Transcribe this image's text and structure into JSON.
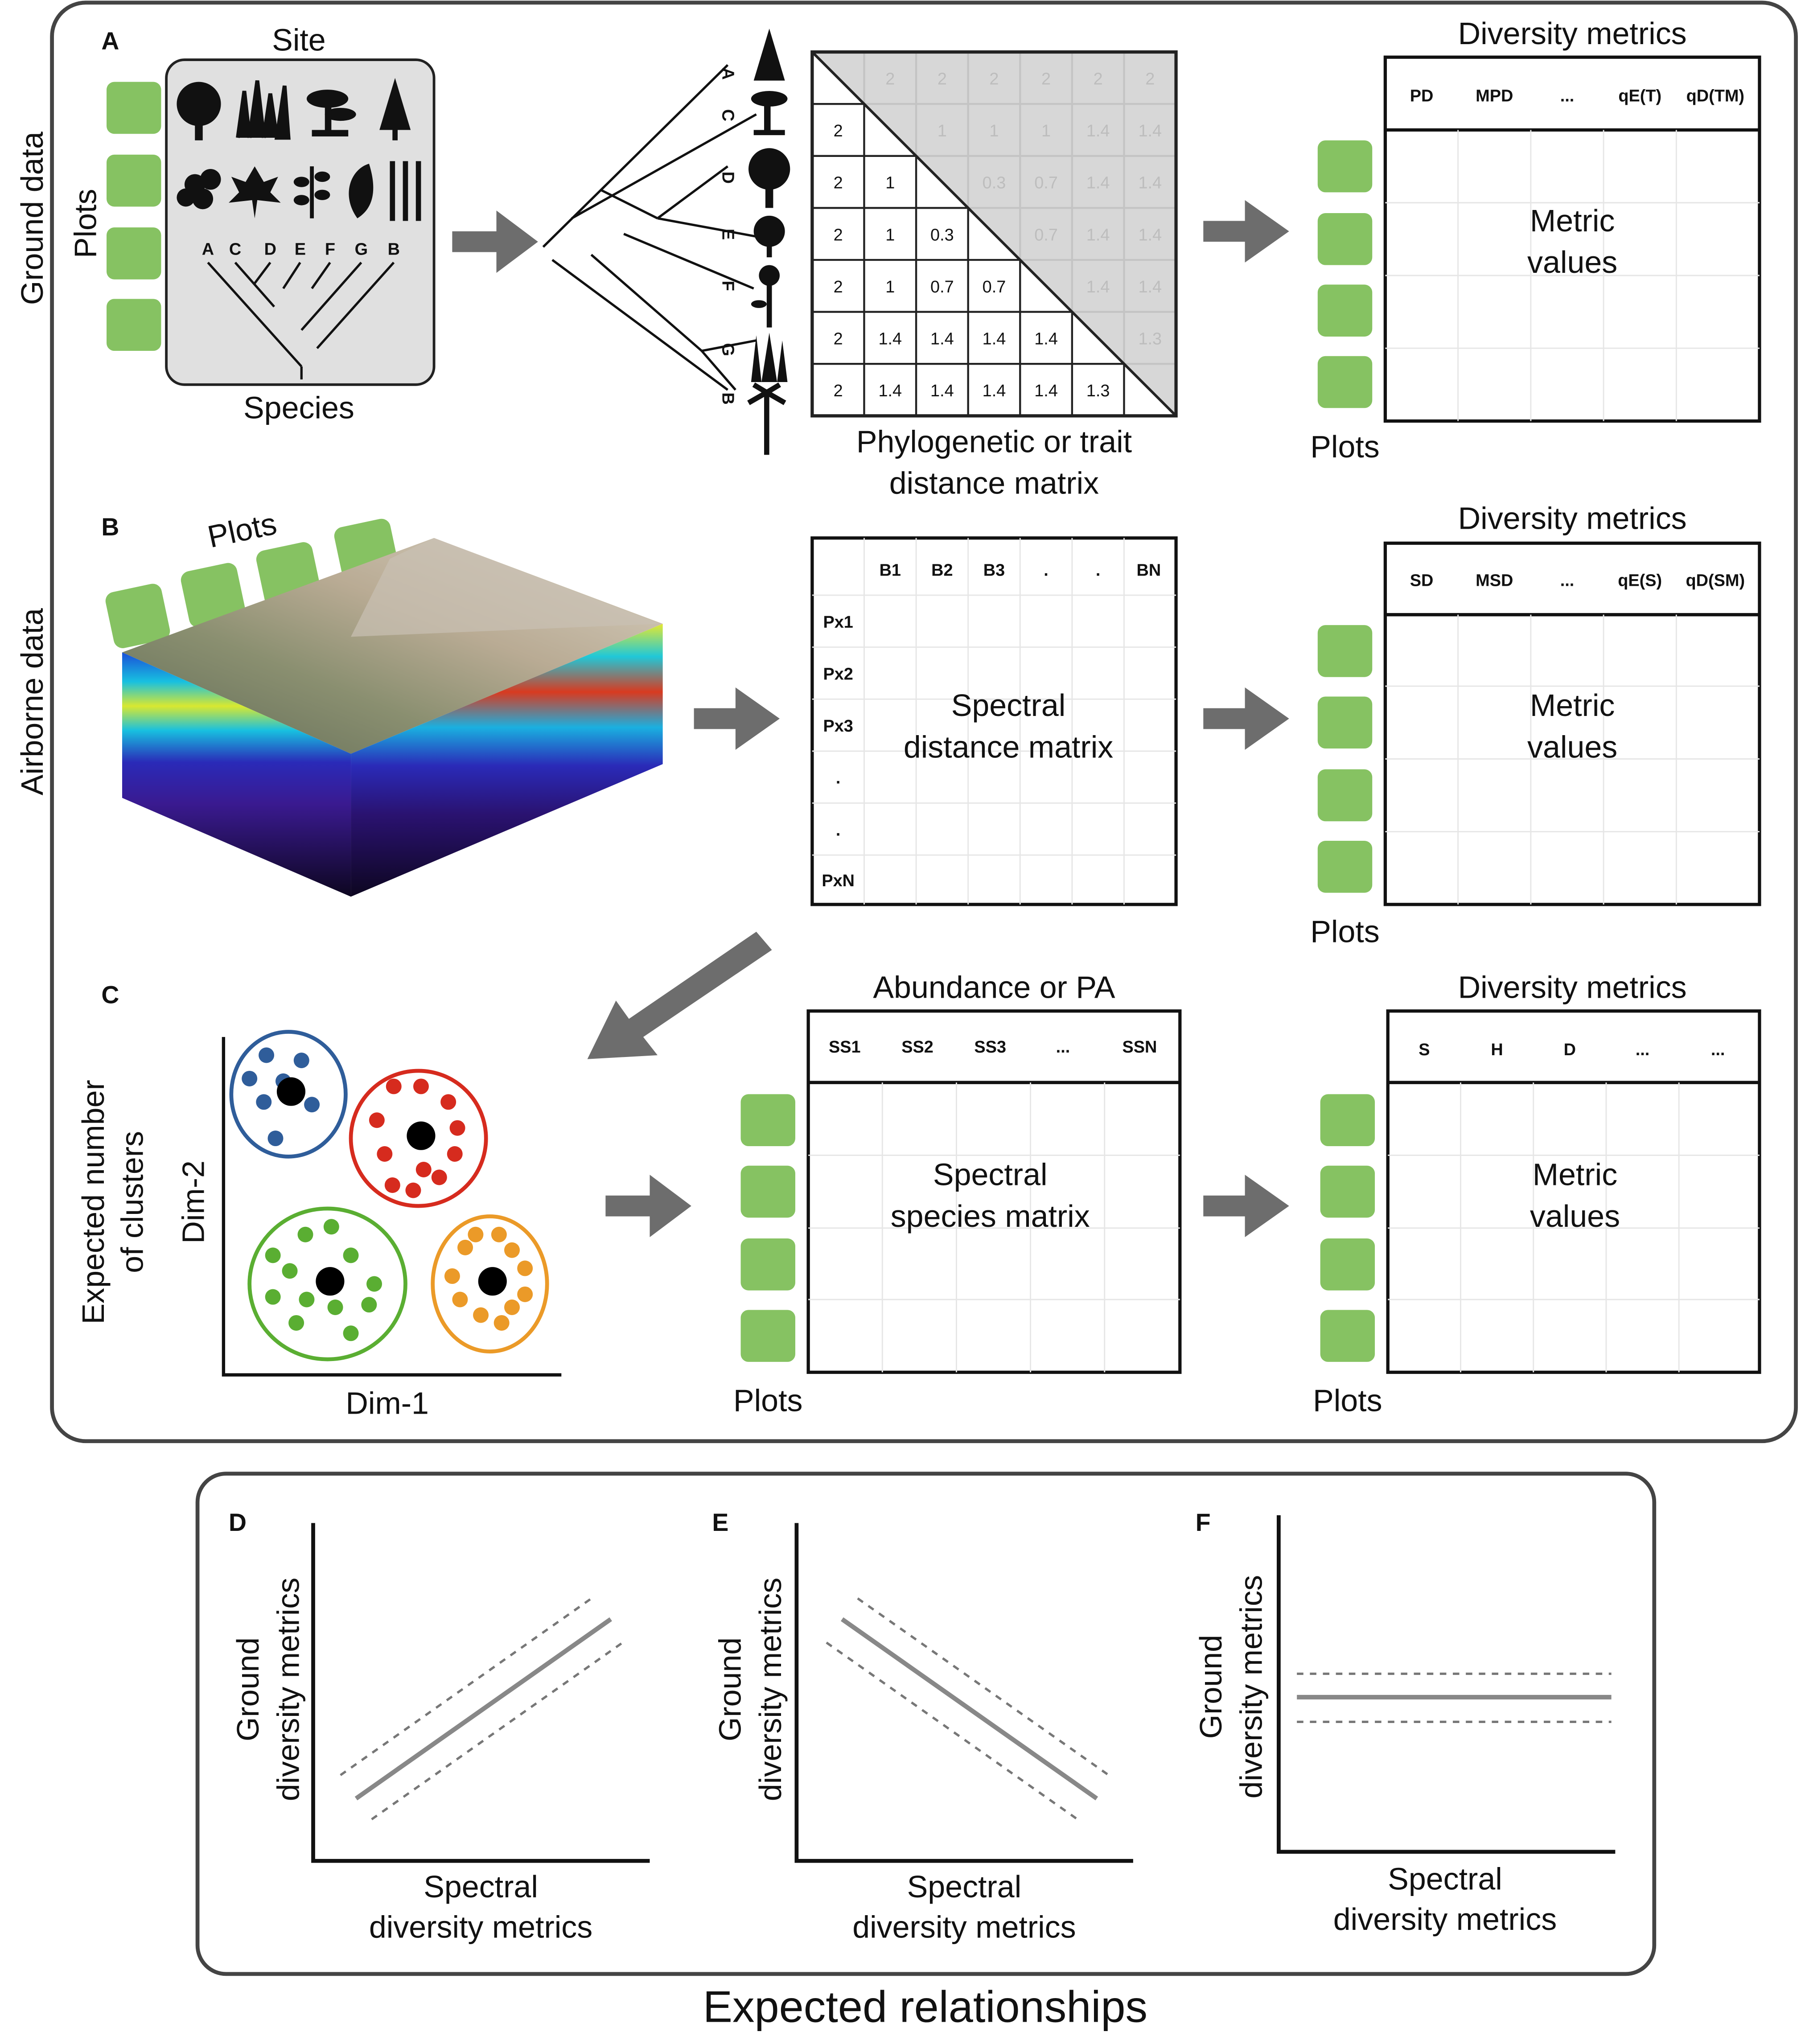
{
  "rows": {
    "ground": "Ground data",
    "airborne": "Airborne data"
  },
  "panels": {
    "a": "A",
    "b": "B",
    "c": "C",
    "d": "D",
    "e": "E",
    "f": "F"
  },
  "panel_a": {
    "site_title": "Site",
    "plots_label": "Plots",
    "species_letters": [
      "A",
      "C",
      "D",
      "E",
      "F",
      "G",
      "B"
    ],
    "species_label": "Species",
    "tree_tip_labels": [
      "A",
      "C",
      "D",
      "E",
      "F",
      "G",
      "B"
    ],
    "matrix_upper_values": [
      [
        "2",
        "2",
        "2",
        "2",
        "2",
        "2"
      ],
      [
        "1",
        "1",
        "1",
        "1.4",
        "1.4"
      ],
      [
        "0.3",
        "0.7",
        "1.4",
        "1.4"
      ],
      [
        "0.7",
        "1.4",
        "1.4"
      ],
      [
        "1.4",
        "1.4"
      ],
      [
        "1.3"
      ]
    ],
    "matrix_lower_values": [
      [
        "2"
      ],
      [
        "2",
        "1"
      ],
      [
        "2",
        "1",
        "0.3"
      ],
      [
        "2",
        "1",
        "0.7",
        "0.7"
      ],
      [
        "2",
        "1.4",
        "1.4",
        "1.4",
        "1.4"
      ],
      [
        "2",
        "1.4",
        "1.4",
        "1.4",
        "1.4",
        "1.3"
      ]
    ],
    "matrix_caption_1": "Phylogenetic or trait",
    "matrix_caption_2": "distance matrix",
    "metrics_title": "Diversity metrics",
    "metrics_headers": [
      "PD",
      "MPD",
      "...",
      "qE(T)",
      "qD(TM)"
    ],
    "metric_values_1": "Metric",
    "metric_values_2": "values",
    "plots_label_2": "Plots"
  },
  "panel_b": {
    "plots_label": "Plots",
    "col_headers": [
      "B1",
      "B2",
      "B3",
      ".",
      ".",
      "BN"
    ],
    "row_headers": [
      "Px1",
      "Px2",
      "Px3",
      ".",
      ".",
      "PxN"
    ],
    "matrix_text_1": "Spectral",
    "matrix_text_2": "distance matrix",
    "metrics_title": "Diversity metrics",
    "metrics_headers": [
      "SD",
      "MSD",
      "...",
      "qE(S)",
      "qD(SM)"
    ],
    "metric_values_1": "Metric",
    "metric_values_2": "values",
    "plots_label_2": "Plots"
  },
  "panel_c": {
    "ylabel_1": "Expected number",
    "ylabel_2": "of clusters",
    "dim2": "Dim-2",
    "dim1": "Dim-1",
    "cluster_colors": [
      "#2f5d9a",
      "#d62b1e",
      "#5aae32",
      "#eb9a28"
    ],
    "abundance_title": "Abundance or PA",
    "abundance_headers": [
      "SS1",
      "SS2",
      "SS3",
      "...",
      "SSN"
    ],
    "matrix_text_1": "Spectral",
    "matrix_text_2": "species matrix",
    "plots_label": "Plots",
    "metrics_title": "Diversity metrics",
    "metrics_headers": [
      "S",
      "H",
      "D",
      "...",
      "..."
    ],
    "metric_values_1": "Metric",
    "metric_values_2": "values",
    "plots_label_2": "Plots"
  },
  "relationships": {
    "ylabel_1": "Ground",
    "ylabel_2": "diversity metrics",
    "xlabel_1": "Spectral",
    "xlabel_2": "diversity metrics",
    "trends": [
      "positive",
      "negative",
      "flat"
    ],
    "title": "Expected relationships"
  },
  "colors": {
    "plot_green": "#86c262",
    "arrow_gray": "#6d6d6d",
    "panel_gray": "#e0e0e0"
  }
}
